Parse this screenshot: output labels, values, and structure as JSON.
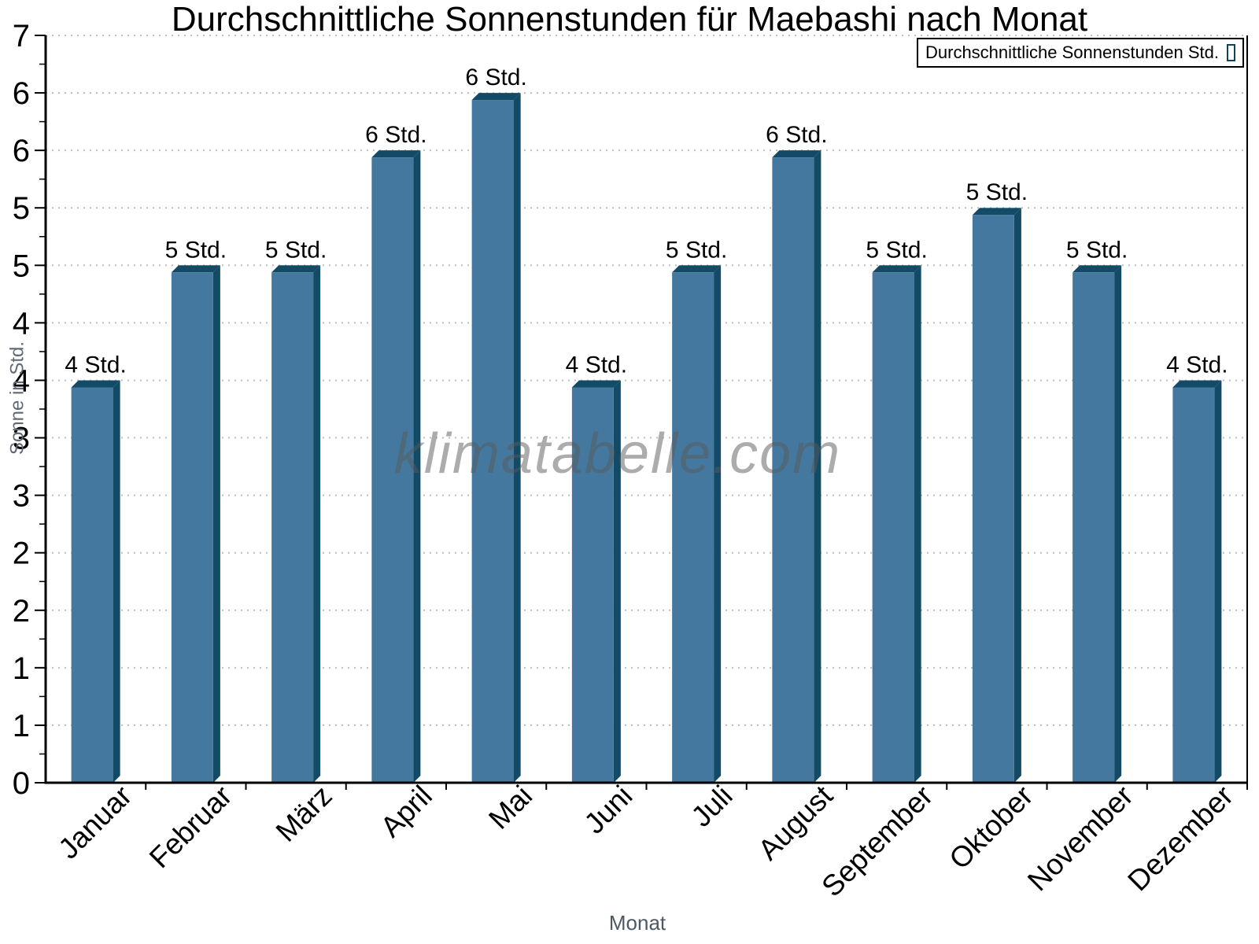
{
  "title": "Durchschnittliche Sonnenstunden für Maebashi nach Monat",
  "legend": {
    "label": "Durchschnittliche Sonnenstunden Std."
  },
  "watermark": "klimatabelle.com",
  "xlabel": "Monat",
  "ylabel": "Sonne in Std.",
  "colors": {
    "bar_face": "#45789F",
    "bar_edge": "#134A66",
    "grid": "#bdbdbd",
    "axis": "#000000",
    "axis_title_gray": "#4d5866",
    "watermark_gray": "#b5b5b5"
  },
  "chart_data": {
    "type": "bar",
    "title": "Durchschnittliche Sonnenstunden für Maebashi nach Monat",
    "xlabel": "Monat",
    "ylabel": "Sonne in Std.",
    "legend": "Durchschnittliche Sonnenstunden Std.",
    "legend_position": "top-right",
    "grid": "dotted horizontal, every 0.5",
    "categories": [
      "Januar",
      "Februar",
      "März",
      "April",
      "Mai",
      "Juni",
      "Juli",
      "August",
      "September",
      "Oktober",
      "November",
      "Dezember"
    ],
    "values": [
      3.5,
      4.5,
      4.5,
      5.5,
      6.0,
      3.5,
      4.5,
      5.5,
      4.5,
      5.0,
      4.5,
      3.5
    ],
    "bar_labels": [
      "4 Std.",
      "5 Std.",
      "5 Std.",
      "6 Std.",
      "6 Std.",
      "4 Std.",
      "5 Std.",
      "6 Std.",
      "5 Std.",
      "5 Std.",
      "5 Std.",
      "4 Std."
    ],
    "ylim": [
      0,
      6.5
    ],
    "ytick_interval": 0.5,
    "ytick_values": [
      0,
      0.5,
      1,
      1.5,
      2,
      2.5,
      3,
      3.5,
      4,
      4.5,
      5,
      5.5,
      6,
      6.5
    ],
    "ytick_labels": [
      "0",
      "1",
      "1",
      "2",
      "2",
      "3",
      "3",
      "4",
      "4",
      "5",
      "5",
      "6",
      "6",
      "7"
    ]
  }
}
